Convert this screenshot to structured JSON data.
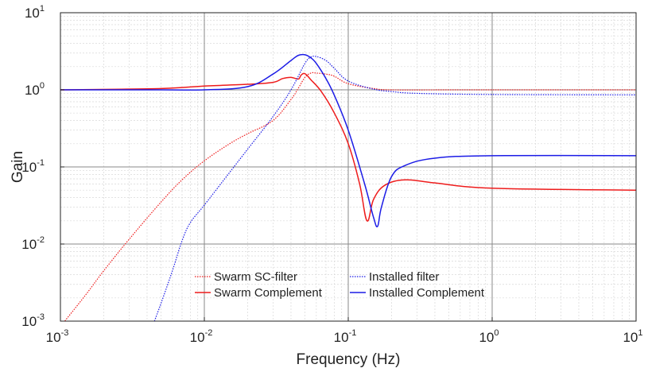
{
  "chart_data": {
    "type": "line",
    "xscale": "log",
    "yscale": "log",
    "xlim": [
      0.001,
      10
    ],
    "ylim": [
      0.001,
      10
    ],
    "xlabel": "Frequency (Hz)",
    "ylabel": "Gain",
    "xticks": [
      0.001,
      0.01,
      0.1,
      1,
      10
    ],
    "xtick_labels": [
      {
        "base": "10",
        "exp": "-3"
      },
      {
        "base": "10",
        "exp": "-2"
      },
      {
        "base": "10",
        "exp": "-1"
      },
      {
        "base": "10",
        "exp": "0"
      },
      {
        "base": "10",
        "exp": "1"
      }
    ],
    "yticks": [
      0.001,
      0.01,
      0.1,
      1,
      10
    ],
    "ytick_labels": [
      {
        "base": "10",
        "exp": "-3"
      },
      {
        "base": "10",
        "exp": "-2"
      },
      {
        "base": "10",
        "exp": "-1"
      },
      {
        "base": "10",
        "exp": "0"
      },
      {
        "base": "10",
        "exp": "1"
      }
    ],
    "grid": true,
    "minor_grid": true,
    "legend_placement": "bottom-center",
    "series": [
      {
        "name": "Swarm SC-filter",
        "color": "#ee1c1c",
        "style": "dotted",
        "points": [
          [
            0.001,
            0.00085
          ],
          [
            0.0015,
            0.0022
          ],
          [
            0.002,
            0.0045
          ],
          [
            0.003,
            0.0115
          ],
          [
            0.005,
            0.035
          ],
          [
            0.007,
            0.068
          ],
          [
            0.01,
            0.12
          ],
          [
            0.015,
            0.2
          ],
          [
            0.02,
            0.27
          ],
          [
            0.03,
            0.4
          ],
          [
            0.04,
            0.75
          ],
          [
            0.045,
            1.05
          ],
          [
            0.05,
            1.45
          ],
          [
            0.055,
            1.65
          ],
          [
            0.06,
            1.65
          ],
          [
            0.07,
            1.6
          ],
          [
            0.08,
            1.5
          ],
          [
            0.1,
            1.2
          ],
          [
            0.15,
            1.04
          ],
          [
            0.2,
            1.0
          ],
          [
            0.5,
            1.0
          ],
          [
            1,
            1.0
          ],
          [
            10,
            1.0
          ]
        ]
      },
      {
        "name": "Swarm Complement",
        "color": "#ee1c1c",
        "style": "solid",
        "points": [
          [
            0.001,
            1.0
          ],
          [
            0.005,
            1.04
          ],
          [
            0.01,
            1.12
          ],
          [
            0.02,
            1.18
          ],
          [
            0.03,
            1.25
          ],
          [
            0.035,
            1.4
          ],
          [
            0.04,
            1.45
          ],
          [
            0.045,
            1.38
          ],
          [
            0.047,
            1.55
          ],
          [
            0.05,
            1.62
          ],
          [
            0.055,
            1.35
          ],
          [
            0.065,
            0.95
          ],
          [
            0.08,
            0.5
          ],
          [
            0.1,
            0.2
          ],
          [
            0.12,
            0.06
          ],
          [
            0.135,
            0.02
          ],
          [
            0.15,
            0.038
          ],
          [
            0.18,
            0.058
          ],
          [
            0.25,
            0.068
          ],
          [
            0.4,
            0.062
          ],
          [
            1,
            0.053
          ],
          [
            10,
            0.05
          ]
        ]
      },
      {
        "name": "Installed filter",
        "color": "#1c1ce6",
        "style": "dotted",
        "points": [
          [
            0.0045,
            0.001
          ],
          [
            0.005,
            0.0017
          ],
          [
            0.006,
            0.0045
          ],
          [
            0.007,
            0.011
          ],
          [
            0.008,
            0.019
          ],
          [
            0.01,
            0.032
          ],
          [
            0.015,
            0.085
          ],
          [
            0.02,
            0.17
          ],
          [
            0.03,
            0.45
          ],
          [
            0.04,
            1.0
          ],
          [
            0.05,
            2.2
          ],
          [
            0.055,
            2.65
          ],
          [
            0.06,
            2.7
          ],
          [
            0.07,
            2.4
          ],
          [
            0.08,
            1.9
          ],
          [
            0.1,
            1.3
          ],
          [
            0.15,
            1.02
          ],
          [
            0.2,
            0.95
          ],
          [
            0.3,
            0.9
          ],
          [
            1,
            0.87
          ],
          [
            10,
            0.86
          ]
        ]
      },
      {
        "name": "Installed Complement",
        "color": "#1c1ce6",
        "style": "solid",
        "points": [
          [
            0.001,
            1.0
          ],
          [
            0.005,
            1.0
          ],
          [
            0.01,
            1.0
          ],
          [
            0.02,
            1.1
          ],
          [
            0.03,
            1.6
          ],
          [
            0.04,
            2.4
          ],
          [
            0.045,
            2.8
          ],
          [
            0.05,
            2.85
          ],
          [
            0.055,
            2.6
          ],
          [
            0.06,
            2.2
          ],
          [
            0.07,
            1.4
          ],
          [
            0.08,
            0.85
          ],
          [
            0.1,
            0.3
          ],
          [
            0.13,
            0.06
          ],
          [
            0.15,
            0.022
          ],
          [
            0.16,
            0.017
          ],
          [
            0.17,
            0.03
          ],
          [
            0.2,
            0.075
          ],
          [
            0.25,
            0.105
          ],
          [
            0.4,
            0.13
          ],
          [
            1,
            0.14
          ],
          [
            10,
            0.14
          ]
        ]
      }
    ]
  }
}
